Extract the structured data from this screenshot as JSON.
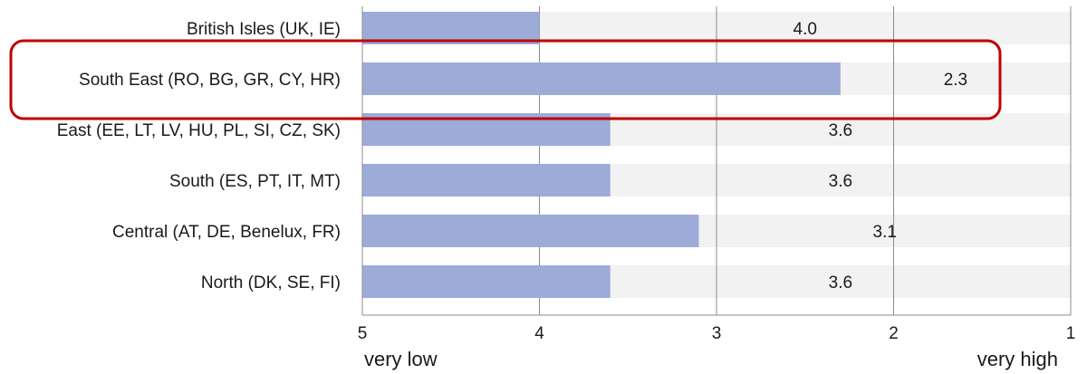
{
  "chart_data": {
    "type": "bar",
    "orientation": "horizontal",
    "categories": [
      "British Isles (UK, IE)",
      "South East (RO, BG, GR, CY, HR)",
      "East (EE, LT, LV, HU, PL, SI, CZ, SK)",
      "South (ES, PT, IT, MT)",
      "Central (AT, DE, Benelux, FR)",
      "North (DK, SE, FI)"
    ],
    "values": [
      4.0,
      2.3,
      3.6,
      3.6,
      3.1,
      3.6
    ],
    "value_labels": [
      "4.0",
      "2.3",
      "3.6",
      "3.6",
      "3.1",
      "3.6"
    ],
    "xlim": [
      5,
      1
    ],
    "x_reversed": true,
    "x_ticks": [
      "5",
      "4",
      "3",
      "2",
      "1"
    ],
    "axis_notes": {
      "low_end": "very low",
      "high_end": "very high"
    },
    "highlighted_category": "South East (RO, BG, GR, CY, HR)",
    "gridlines": true,
    "colors": {
      "bar": "#9dabd8",
      "background_band": "#f2f2f2",
      "gridline": "#8c8c8c",
      "highlight_box": "#c00000"
    }
  }
}
